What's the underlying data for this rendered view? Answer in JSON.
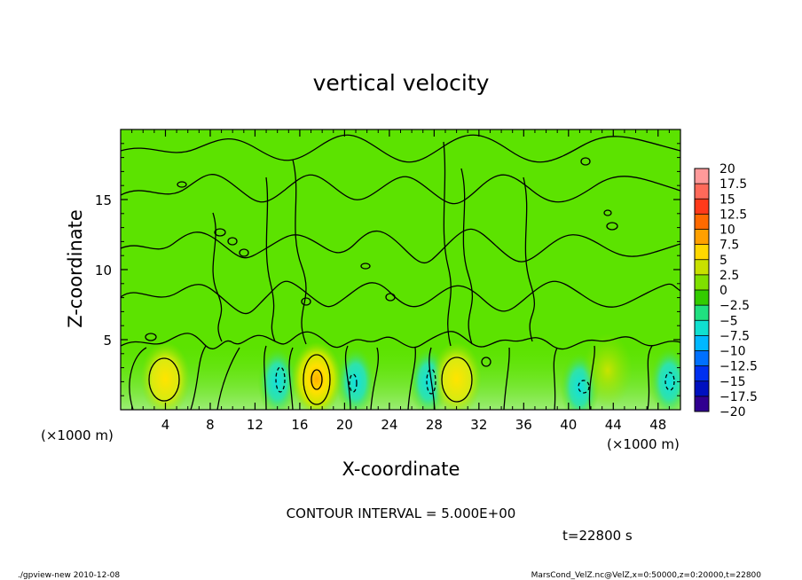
{
  "chart_data": {
    "type": "heatmap",
    "title": "vertical velocity",
    "xlabel": "X-coordinate",
    "ylabel": "Z-coordinate",
    "x_unit_left": "(×1000 m)",
    "x_unit_right": "(×1000 m)",
    "xlim": [
      0,
      50
    ],
    "ylim": [
      0,
      20
    ],
    "x_ticks": [
      4,
      8,
      12,
      16,
      20,
      24,
      28,
      32,
      36,
      40,
      44,
      48
    ],
    "y_ticks": [
      5,
      10,
      15
    ],
    "x_tick_labels": [
      "4",
      "8",
      "12",
      "16",
      "20",
      "24",
      "28",
      "32",
      "36",
      "40",
      "44",
      "48"
    ],
    "y_tick_labels": [
      "5",
      "10",
      "15"
    ],
    "colorbar": {
      "labels": [
        "20",
        "17.5",
        "15",
        "12.5",
        "10",
        "7.5",
        "5",
        "2.5",
        "0",
        "−2.5",
        "−5",
        "−7.5",
        "−10",
        "−12.5",
        "−15",
        "−17.5",
        "−20"
      ],
      "colors": [
        "#ff9a9a",
        "#ff6a5a",
        "#ff3a1a",
        "#ff6a00",
        "#ffa000",
        "#ffd800",
        "#c8e000",
        "#7fe000",
        "#33cc00",
        "#20e080",
        "#10e0d0",
        "#00b8ff",
        "#0070ff",
        "#0030f0",
        "#0010c0",
        "#300090",
        "#6a10b0"
      ]
    },
    "field": {
      "background_level": "0",
      "lower_layer_level": "-2.5 to 2.5",
      "updraft_cores": [
        {
          "x": 4.0,
          "z": 2.2,
          "level": "7.5"
        },
        {
          "x": 17.5,
          "z": 2.2,
          "level": "10"
        },
        {
          "x": 30.0,
          "z": 2.2,
          "level": "7.5"
        },
        {
          "x": 43.5,
          "z": 2.8,
          "level": "2.5"
        }
      ],
      "downdraft_cores": [
        {
          "x": 14.0,
          "z": 2.0,
          "level": "-5"
        },
        {
          "x": 21.0,
          "z": 2.0,
          "level": "-2.5"
        },
        {
          "x": 27.5,
          "z": 2.0,
          "level": "-5"
        },
        {
          "x": 41.0,
          "z": 1.6,
          "level": "-2.5"
        },
        {
          "x": 49.0,
          "z": 2.0,
          "level": "-5"
        }
      ]
    },
    "contour_interval_text": "CONTOUR INTERVAL = 5.000E+00",
    "time_text": "t=22800  s"
  },
  "footer": {
    "left": "./gpview-new   2010-12-08",
    "right": "MarsCond_VelZ.nc@VelZ,x=0:50000,z=0:20000,t=22800"
  },
  "colors": {
    "background_green": "#5ce300",
    "lower_green": "#7fe84a",
    "updraft_yellow": "#ffdc00",
    "downdraft_cyan": "#2fe3c8",
    "contour": "#000000"
  }
}
